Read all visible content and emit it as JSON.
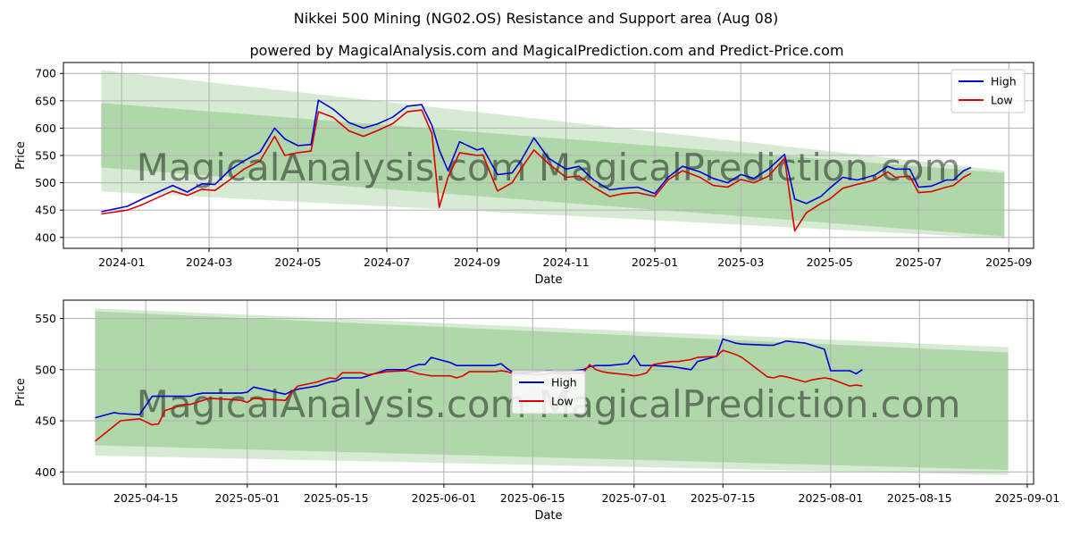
{
  "title": "Nikkei 500 Mining (NG02.OS) Resistance and Support area (Aug 08)",
  "subtitle": "powered by MagicalAnalysis.com and MagicalPrediction.com and Predict-Price.com",
  "watermark": "MagicalAnalysis.com   MagicalPrediction.com",
  "colors": {
    "high": "#0000dd",
    "low": "#dd0000",
    "band_dark": "#a9d3a2",
    "band_light": "#d3e9cf",
    "grid": "#b0b0b0"
  },
  "chart_data": [
    {
      "type": "line",
      "xlabel": "Date",
      "ylabel": "Price",
      "ylim": [
        380,
        720
      ],
      "xlim": [
        "2023-11-22",
        "2025-09-18"
      ],
      "x_ticks": [
        "2024-01",
        "2024-03",
        "2024-05",
        "2024-07",
        "2024-09",
        "2024-11",
        "2025-01",
        "2025-03",
        "2025-05",
        "2025-07",
        "2025-09"
      ],
      "y_ticks": [
        400,
        450,
        500,
        550,
        600,
        650,
        700
      ],
      "grid": true,
      "legend_position": "top-right",
      "bands": [
        {
          "style": "light",
          "x": [
            "2023-12-18",
            "2025-08-29"
          ],
          "upper": [
            706,
            522
          ],
          "lower": [
            484,
            398
          ]
        },
        {
          "style": "dark",
          "x": [
            "2023-12-18",
            "2025-08-29"
          ],
          "upper": [
            646,
            518
          ],
          "lower": [
            528,
            402
          ]
        }
      ],
      "series": [
        {
          "name": "High",
          "x": [
            "2023-12-18",
            "2024-01-05",
            "2024-01-15",
            "2024-01-25",
            "2024-02-05",
            "2024-02-15",
            "2024-02-25",
            "2024-03-05",
            "2024-03-15",
            "2024-03-25",
            "2024-04-05",
            "2024-04-15",
            "2024-04-22",
            "2024-05-01",
            "2024-05-10",
            "2024-05-15",
            "2024-05-25",
            "2024-06-05",
            "2024-06-15",
            "2024-06-25",
            "2024-07-05",
            "2024-07-15",
            "2024-07-25",
            "2024-08-01",
            "2024-08-06",
            "2024-08-12",
            "2024-08-20",
            "2024-09-01",
            "2024-09-05",
            "2024-09-15",
            "2024-09-25",
            "2024-10-01",
            "2024-10-10",
            "2024-10-20",
            "2024-11-01",
            "2024-11-10",
            "2024-11-20",
            "2024-12-01",
            "2024-12-10",
            "2024-12-20",
            "2025-01-01",
            "2025-01-10",
            "2025-01-20",
            "2025-02-01",
            "2025-02-10",
            "2025-02-20",
            "2025-03-01",
            "2025-03-10",
            "2025-03-20",
            "2025-03-31",
            "2025-04-07",
            "2025-04-15",
            "2025-04-25",
            "2025-05-01",
            "2025-05-10",
            "2025-05-20",
            "2025-06-01",
            "2025-06-10",
            "2025-06-15",
            "2025-06-25",
            "2025-07-01",
            "2025-07-10",
            "2025-07-20",
            "2025-07-25",
            "2025-08-01",
            "2025-08-06"
          ],
          "values": [
            447,
            457,
            470,
            482,
            495,
            483,
            498,
            497,
            523,
            540,
            556,
            600,
            580,
            568,
            570,
            651,
            635,
            610,
            600,
            608,
            620,
            640,
            643,
            605,
            560,
            522,
            575,
            560,
            563,
            515,
            518,
            540,
            582,
            545,
            525,
            530,
            505,
            487,
            490,
            492,
            480,
            510,
            530,
            520,
            508,
            500,
            515,
            508,
            525,
            552,
            470,
            462,
            475,
            490,
            510,
            505,
            514,
            530,
            525,
            525,
            492,
            494,
            505,
            505,
            522,
            528
          ]
        },
        {
          "name": "Low",
          "x": [
            "2023-12-18",
            "2024-01-05",
            "2024-01-15",
            "2024-01-25",
            "2024-02-05",
            "2024-02-15",
            "2024-02-25",
            "2024-03-05",
            "2024-03-15",
            "2024-03-25",
            "2024-04-05",
            "2024-04-15",
            "2024-04-22",
            "2024-05-01",
            "2024-05-10",
            "2024-05-15",
            "2024-05-25",
            "2024-06-05",
            "2024-06-15",
            "2024-06-25",
            "2024-07-05",
            "2024-07-15",
            "2024-07-25",
            "2024-08-01",
            "2024-08-06",
            "2024-08-12",
            "2024-08-20",
            "2024-09-01",
            "2024-09-05",
            "2024-09-15",
            "2024-09-25",
            "2024-10-01",
            "2024-10-10",
            "2024-10-20",
            "2024-11-01",
            "2024-11-10",
            "2024-11-20",
            "2024-12-01",
            "2024-12-10",
            "2024-12-20",
            "2025-01-01",
            "2025-01-10",
            "2025-01-20",
            "2025-02-01",
            "2025-02-10",
            "2025-02-20",
            "2025-03-01",
            "2025-03-10",
            "2025-03-20",
            "2025-03-31",
            "2025-04-07",
            "2025-04-15",
            "2025-04-25",
            "2025-05-01",
            "2025-05-10",
            "2025-05-20",
            "2025-06-01",
            "2025-06-10",
            "2025-06-15",
            "2025-06-25",
            "2025-07-01",
            "2025-07-10",
            "2025-07-20",
            "2025-07-25",
            "2025-08-01",
            "2025-08-06"
          ],
          "values": [
            443,
            450,
            460,
            472,
            485,
            477,
            488,
            486,
            505,
            525,
            540,
            585,
            550,
            555,
            558,
            630,
            620,
            595,
            585,
            596,
            608,
            630,
            633,
            590,
            455,
            510,
            555,
            550,
            551,
            485,
            500,
            525,
            560,
            535,
            510,
            512,
            492,
            475,
            480,
            482,
            475,
            505,
            522,
            510,
            495,
            492,
            506,
            500,
            512,
            545,
            412,
            445,
            462,
            470,
            490,
            497,
            505,
            520,
            510,
            512,
            482,
            484,
            492,
            495,
            510,
            517
          ]
        }
      ]
    },
    {
      "type": "line",
      "xlabel": "Date",
      "ylabel": "Price",
      "ylim": [
        388,
        568
      ],
      "xlim": [
        "2025-04-02",
        "2025-09-02"
      ],
      "x_ticks": [
        "2025-04-15",
        "2025-05-01",
        "2025-05-15",
        "2025-06-01",
        "2025-06-15",
        "2025-07-01",
        "2025-07-15",
        "2025-08-01",
        "2025-08-15",
        "2025-09-01"
      ],
      "y_ticks": [
        400,
        450,
        500,
        550
      ],
      "grid": true,
      "legend_position": "center",
      "bands": [
        {
          "style": "light",
          "x": [
            "2025-04-07",
            "2025-08-29"
          ],
          "upper": [
            560,
            522
          ],
          "lower": [
            416,
            397
          ]
        },
        {
          "style": "dark",
          "x": [
            "2025-04-07",
            "2025-08-29"
          ],
          "upper": [
            557,
            517
          ],
          "lower": [
            426,
            402
          ]
        }
      ],
      "series": [
        {
          "name": "High",
          "x": [
            "2025-04-07",
            "2025-04-10",
            "2025-04-11",
            "2025-04-14",
            "2025-04-16",
            "2025-04-17",
            "2025-04-18",
            "2025-04-21",
            "2025-04-22",
            "2025-04-23",
            "2025-04-24",
            "2025-04-25",
            "2025-04-28",
            "2025-04-30",
            "2025-05-01",
            "2025-05-02",
            "2025-05-07",
            "2025-05-08",
            "2025-05-09",
            "2025-05-12",
            "2025-05-13",
            "2025-05-14",
            "2025-05-15",
            "2025-05-16",
            "2025-05-19",
            "2025-05-20",
            "2025-05-21",
            "2025-05-22",
            "2025-05-23",
            "2025-05-26",
            "2025-05-27",
            "2025-05-28",
            "2025-05-29",
            "2025-05-30",
            "2025-06-02",
            "2025-06-03",
            "2025-06-04",
            "2025-06-05",
            "2025-06-06",
            "2025-06-09",
            "2025-06-10",
            "2025-06-11",
            "2025-06-12",
            "2025-06-13",
            "2025-06-16",
            "2025-06-17",
            "2025-06-18",
            "2025-06-19",
            "2025-06-20",
            "2025-06-23",
            "2025-06-24",
            "2025-06-25",
            "2025-06-26",
            "2025-06-27",
            "2025-06-30",
            "2025-07-01",
            "2025-07-02",
            "2025-07-03",
            "2025-07-04",
            "2025-07-07",
            "2025-07-08",
            "2025-07-09",
            "2025-07-10",
            "2025-07-11",
            "2025-07-14",
            "2025-07-15",
            "2025-07-16",
            "2025-07-17",
            "2025-07-18",
            "2025-07-22",
            "2025-07-23",
            "2025-07-24",
            "2025-07-25",
            "2025-07-28",
            "2025-07-29",
            "2025-07-30",
            "2025-07-31",
            "2025-08-01",
            "2025-08-04",
            "2025-08-05",
            "2025-08-06"
          ],
          "values": [
            453,
            458,
            457,
            456,
            474,
            474,
            474,
            474,
            474,
            476,
            477,
            477,
            477,
            477,
            478,
            483,
            476,
            479,
            481,
            484,
            486,
            488,
            489,
            492,
            492,
            494,
            496,
            498,
            500,
            500,
            503,
            505,
            505,
            512,
            507,
            504,
            504,
            504,
            504,
            504,
            506,
            501,
            497,
            497,
            498,
            499,
            499,
            498,
            498,
            500,
            503,
            504,
            504,
            504,
            506,
            514,
            504,
            504,
            504,
            503,
            502,
            501,
            500,
            508,
            513,
            530,
            528,
            526,
            525,
            524,
            524,
            526,
            528,
            526,
            524,
            522,
            520,
            499,
            499,
            496,
            500
          ]
        },
        {
          "name": "Low",
          "x": [
            "2025-04-07",
            "2025-04-10",
            "2025-04-11",
            "2025-04-14",
            "2025-04-16",
            "2025-04-17",
            "2025-04-18",
            "2025-04-21",
            "2025-04-22",
            "2025-04-23",
            "2025-04-24",
            "2025-04-25",
            "2025-04-28",
            "2025-04-30",
            "2025-05-01",
            "2025-05-02",
            "2025-05-07",
            "2025-05-08",
            "2025-05-09",
            "2025-05-12",
            "2025-05-13",
            "2025-05-14",
            "2025-05-15",
            "2025-05-16",
            "2025-05-19",
            "2025-05-20",
            "2025-05-21",
            "2025-05-22",
            "2025-05-23",
            "2025-05-26",
            "2025-05-27",
            "2025-05-28",
            "2025-05-29",
            "2025-05-30",
            "2025-06-02",
            "2025-06-03",
            "2025-06-04",
            "2025-06-05",
            "2025-06-06",
            "2025-06-09",
            "2025-06-10",
            "2025-06-11",
            "2025-06-12",
            "2025-06-13",
            "2025-06-16",
            "2025-06-17",
            "2025-06-18",
            "2025-06-19",
            "2025-06-20",
            "2025-06-23",
            "2025-06-24",
            "2025-06-25",
            "2025-06-26",
            "2025-06-27",
            "2025-06-30",
            "2025-07-01",
            "2025-07-02",
            "2025-07-03",
            "2025-07-04",
            "2025-07-07",
            "2025-07-08",
            "2025-07-09",
            "2025-07-10",
            "2025-07-11",
            "2025-07-14",
            "2025-07-15",
            "2025-07-16",
            "2025-07-17",
            "2025-07-18",
            "2025-07-22",
            "2025-07-23",
            "2025-07-24",
            "2025-07-25",
            "2025-07-28",
            "2025-07-29",
            "2025-07-30",
            "2025-07-31",
            "2025-08-01",
            "2025-08-04",
            "2025-08-05",
            "2025-08-06"
          ],
          "values": [
            430,
            445,
            450,
            452,
            446,
            447,
            460,
            466,
            466,
            468,
            470,
            472,
            471,
            470,
            468,
            472,
            470,
            478,
            484,
            488,
            490,
            492,
            491,
            497,
            497,
            495,
            496,
            497,
            498,
            499,
            498,
            496,
            495,
            494,
            494,
            492,
            494,
            498,
            498,
            498,
            499,
            498,
            496,
            496,
            495,
            496,
            497,
            496,
            496,
            497,
            505,
            500,
            498,
            497,
            495,
            494,
            495,
            497,
            505,
            508,
            508,
            509,
            510,
            512,
            513,
            519,
            517,
            515,
            512,
            493,
            492,
            494,
            493,
            488,
            490,
            491,
            492,
            491,
            484,
            485,
            484
          ]
        }
      ]
    }
  ]
}
